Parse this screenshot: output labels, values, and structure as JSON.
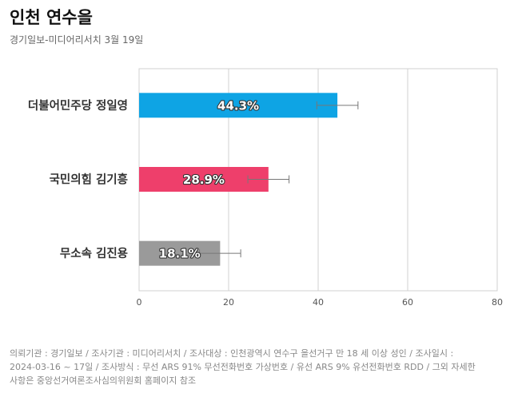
{
  "header": {
    "title": "인천 연수을",
    "subtitle": "경기일보-미디어리서치 3월 19일"
  },
  "chart_data": {
    "type": "bar",
    "orientation": "horizontal",
    "categories": [
      "더불어민주당 정일영",
      "국민의힘 김기흥",
      "무소속 김진용"
    ],
    "values": [
      44.3,
      28.9,
      18.1
    ],
    "value_labels": [
      "44.3%",
      "28.9%",
      "18.1%"
    ],
    "error_bars": [
      [
        39.7,
        48.9
      ],
      [
        24.3,
        33.5
      ],
      [
        13.5,
        22.7
      ]
    ],
    "colors": [
      "#0ea4e4",
      "#ee3f6b",
      "#9a9a9a"
    ],
    "xlim": [
      0,
      80
    ],
    "xticks": [
      0,
      20,
      40,
      60,
      80
    ],
    "grid": true,
    "title": "",
    "xlabel": "",
    "ylabel": ""
  },
  "footnote": {
    "line1": "의뢰기관 : 경기일보 / 조사기관 : 미디어리서치 / 조사대상 : 인천광역시 연수구 을선거구 만 18 세 이상 성인 / 조사일시 :",
    "line2": "2024-03-16 ~ 17일 / 조사방식 : 무선 ARS 91% 무선전화번호 가상번호 / 유선 ARS 9% 유선전화번호 RDD / 그외 자세한",
    "line3": "사항은 중앙선거여론조사심의위원회 홈페이지 참조"
  }
}
